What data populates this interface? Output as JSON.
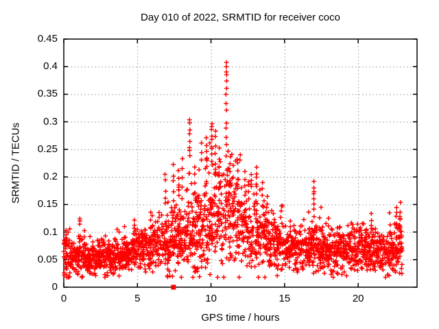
{
  "window": {
    "title": "Day 010 of 2022, SRMTID for receiver coco"
  },
  "chart_data": {
    "type": "scatter",
    "title": "Day 010 of 2022, SRMTID for receiver coco",
    "xlabel": "GPS time / hours",
    "ylabel": "SRMTID / TECUs",
    "xlim": [
      0,
      24
    ],
    "ylim": [
      0,
      0.45
    ],
    "xticks": [
      0,
      5,
      10,
      15,
      20
    ],
    "xtick_labels": [
      "0",
      "5",
      "10",
      "15",
      "20"
    ],
    "yticks": [
      0,
      0.05,
      0.1,
      0.15,
      0.2,
      0.25,
      0.3,
      0.35,
      0.4,
      0.45
    ],
    "ytick_labels": [
      "0",
      "0.05",
      "0.1",
      "0.15",
      "0.2",
      "0.25",
      "0.3",
      "0.35",
      "0.4",
      "0.45"
    ],
    "grid": true,
    "grid_style": "dashed",
    "grid_color": "#a8a8a8",
    "legend": "none",
    "marker_color": "#ff0000",
    "description": "Dense scatter of SRMTID vs GPS time: baseline ~0.05-0.10 TECU at night hours, rising after 06:00 to a broad daytime enhancement peaking ~0.40 TECU near 11.0 h, decaying back to ~0.05-0.10 after 15:00; data span 0-23 h; isolated filled-square flag at (7.45, 0).",
    "series": [
      {
        "name": "SRMTID",
        "marker": "plus",
        "color": "#ff0000",
        "bin_width_hours": 0.5,
        "envelope_bins": [
          [
            0.0,
            0.5,
            0.058,
            0.018,
            0.11
          ],
          [
            0.5,
            1.0,
            0.055,
            0.015,
            0.095
          ],
          [
            1.0,
            1.5,
            0.058,
            0.018,
            0.127
          ],
          [
            1.5,
            2.0,
            0.05,
            0.016,
            0.092
          ],
          [
            2.0,
            2.5,
            0.052,
            0.015,
            0.088
          ],
          [
            2.5,
            3.0,
            0.055,
            0.015,
            0.095
          ],
          [
            3.0,
            3.5,
            0.055,
            0.016,
            0.1
          ],
          [
            3.5,
            4.0,
            0.058,
            0.016,
            0.105
          ],
          [
            4.0,
            4.5,
            0.062,
            0.017,
            0.11
          ],
          [
            4.5,
            5.0,
            0.068,
            0.018,
            0.12
          ],
          [
            5.0,
            5.5,
            0.07,
            0.019,
            0.13
          ],
          [
            5.5,
            6.0,
            0.072,
            0.019,
            0.135
          ],
          [
            6.0,
            6.5,
            0.076,
            0.021,
            0.15
          ],
          [
            6.5,
            7.0,
            0.08,
            0.025,
            0.185
          ],
          [
            7.0,
            7.5,
            0.085,
            0.03,
            0.22
          ],
          [
            7.5,
            8.0,
            0.09,
            0.034,
            0.24
          ],
          [
            8.0,
            8.5,
            0.094,
            0.038,
            0.27
          ],
          [
            8.5,
            9.0,
            0.1,
            0.042,
            0.295
          ],
          [
            9.0,
            9.5,
            0.1,
            0.04,
            0.26
          ],
          [
            9.5,
            10.0,
            0.115,
            0.048,
            0.29
          ],
          [
            10.0,
            10.5,
            0.125,
            0.05,
            0.31
          ],
          [
            10.5,
            11.0,
            0.13,
            0.05,
            0.3
          ],
          [
            11.0,
            11.5,
            0.14,
            0.055,
            0.34
          ],
          [
            11.5,
            12.0,
            0.13,
            0.042,
            0.24
          ],
          [
            12.0,
            12.5,
            0.112,
            0.036,
            0.22
          ],
          [
            12.5,
            13.0,
            0.102,
            0.034,
            0.205
          ],
          [
            13.0,
            13.5,
            0.1,
            0.034,
            0.215
          ],
          [
            13.5,
            14.0,
            0.094,
            0.03,
            0.19
          ],
          [
            14.0,
            14.5,
            0.086,
            0.026,
            0.17
          ],
          [
            14.5,
            15.0,
            0.08,
            0.023,
            0.15
          ],
          [
            15.0,
            15.5,
            0.076,
            0.021,
            0.14
          ],
          [
            15.5,
            16.0,
            0.071,
            0.02,
            0.13
          ],
          [
            16.0,
            16.5,
            0.07,
            0.02,
            0.128
          ],
          [
            16.5,
            17.0,
            0.074,
            0.024,
            0.175
          ],
          [
            17.0,
            17.5,
            0.075,
            0.024,
            0.17
          ],
          [
            17.5,
            18.0,
            0.07,
            0.02,
            0.125
          ],
          [
            18.0,
            18.5,
            0.069,
            0.02,
            0.12
          ],
          [
            18.5,
            19.0,
            0.07,
            0.02,
            0.126
          ],
          [
            19.0,
            19.5,
            0.067,
            0.02,
            0.12
          ],
          [
            19.5,
            20.0,
            0.064,
            0.02,
            0.118
          ],
          [
            20.0,
            20.5,
            0.068,
            0.021,
            0.126
          ],
          [
            20.5,
            21.0,
            0.067,
            0.02,
            0.13
          ],
          [
            21.0,
            21.5,
            0.065,
            0.02,
            0.135
          ],
          [
            21.5,
            22.0,
            0.064,
            0.019,
            0.12
          ],
          [
            22.0,
            22.5,
            0.069,
            0.021,
            0.138
          ],
          [
            22.5,
            23.0,
            0.078,
            0.024,
            0.15
          ]
        ],
        "spike_columns": [
          [
            0.15,
            0.085,
            0.105,
            4
          ],
          [
            1.1,
            0.112,
            0.127,
            3
          ],
          [
            4.8,
            0.1,
            0.12,
            3
          ],
          [
            5.9,
            0.11,
            0.135,
            3
          ],
          [
            6.9,
            0.15,
            0.205,
            5
          ],
          [
            7.45,
            0.16,
            0.22,
            5
          ],
          [
            7.8,
            0.17,
            0.215,
            4
          ],
          [
            8.05,
            0.18,
            0.235,
            4
          ],
          [
            8.55,
            0.235,
            0.305,
            8
          ],
          [
            8.9,
            0.17,
            0.22,
            4
          ],
          [
            9.35,
            0.23,
            0.26,
            3
          ],
          [
            9.7,
            0.215,
            0.27,
            6
          ],
          [
            10.05,
            0.23,
            0.3,
            9
          ],
          [
            10.3,
            0.21,
            0.285,
            6
          ],
          [
            10.55,
            0.19,
            0.25,
            5
          ],
          [
            11.04,
            0.375,
            0.405,
            5
          ],
          [
            11.04,
            0.325,
            0.357,
            4
          ],
          [
            11.04,
            0.24,
            0.3,
            5
          ],
          [
            11.3,
            0.19,
            0.24,
            4
          ],
          [
            11.8,
            0.18,
            0.225,
            4
          ],
          [
            12.3,
            0.17,
            0.21,
            4
          ],
          [
            12.75,
            0.18,
            0.205,
            4
          ],
          [
            13.1,
            0.17,
            0.215,
            6
          ],
          [
            13.5,
            0.15,
            0.19,
            4
          ],
          [
            17.0,
            0.13,
            0.193,
            8
          ],
          [
            20.9,
            0.1,
            0.135,
            4
          ],
          [
            22.6,
            0.11,
            0.143,
            5
          ],
          [
            22.85,
            0.1,
            0.15,
            6
          ]
        ]
      },
      {
        "name": "flag-point",
        "marker": "filled-square",
        "color": "#ff0000",
        "points": [
          [
            7.45,
            0.0
          ]
        ]
      }
    ],
    "generator": {
      "seed": 20220110,
      "x_start": 0.02,
      "x_end": 23.0,
      "x_step": 0.05,
      "points_per_step_min": 3,
      "points_per_step_max": 7,
      "y_floor": 0.018
    }
  }
}
